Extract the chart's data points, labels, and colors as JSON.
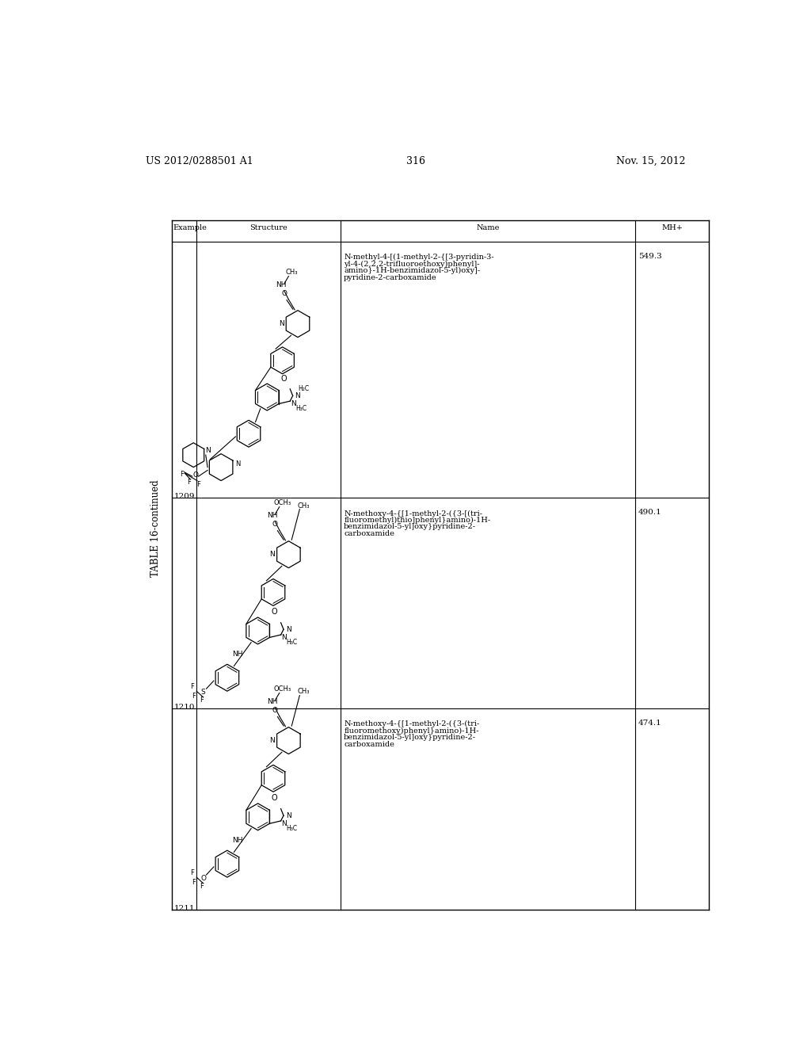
{
  "page_header_left": "US 2012/0288501 A1",
  "page_header_right": "Nov. 15, 2012",
  "page_number": "316",
  "table_title": "TABLE 16-continued",
  "col_headers": [
    "Example",
    "Structure",
    "Name",
    "MH+"
  ],
  "rows": [
    {
      "example": "1209",
      "mh_plus": "549.3",
      "name_lines": [
        "N-methyl-4-[(1-methyl-2-{[3-pyridin-3-",
        "yl-4-(2,2,2-trifluoroethoxy)phenyl]-",
        "amino}-1H-benzimidazol-5-yl)oxy]-",
        "pyridine-2-carboxamide"
      ]
    },
    {
      "example": "1210",
      "mh_plus": "490.1",
      "name_lines": [
        "N-methoxy-4-{[1-methyl-2-({3-[(tri-",
        "fluoromethyl)thio]phenyl}amino)-1H-",
        "benzimidazol-5-yl]oxy}pyridine-2-",
        "carboxamide"
      ]
    },
    {
      "example": "1211",
      "mh_plus": "474.1",
      "name_lines": [
        "N-methoxy-4-{[1-methyl-2-({3-(tri-",
        "fluoromethoxy)phenyl}amino)-1H-",
        "benzimidazol-5-yl]oxy}pyridine-2-",
        "carboxamide"
      ]
    }
  ],
  "bg_color": "#ffffff",
  "text_color": "#000000"
}
